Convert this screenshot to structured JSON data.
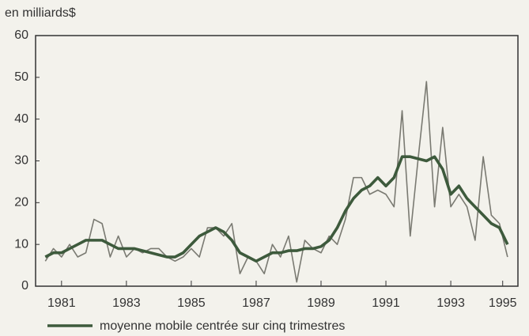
{
  "chart_data": {
    "type": "line",
    "y_axis_label": "en milliards$",
    "x": [
      1981,
      1981.25,
      1981.5,
      1981.75,
      1982,
      1982.25,
      1982.5,
      1982.75,
      1983,
      1983.25,
      1983.5,
      1983.75,
      1984,
      1984.25,
      1984.5,
      1984.75,
      1985,
      1985.25,
      1985.5,
      1985.75,
      1986,
      1986.25,
      1986.5,
      1986.75,
      1987,
      1987.25,
      1987.5,
      1987.75,
      1988,
      1988.25,
      1988.5,
      1988.75,
      1989,
      1989.25,
      1989.5,
      1989.75,
      1990,
      1990.25,
      1990.5,
      1990.75,
      1991,
      1991.25,
      1991.5,
      1991.75,
      1992,
      1992.25,
      1992.5,
      1992.75,
      1993,
      1993.25,
      1993.5,
      1993.75,
      1994,
      1994.25,
      1994.5,
      1994.75,
      1995,
      1995.25
    ],
    "series": [
      {
        "color": "#7a7a72",
        "width": 1.6,
        "values": [
          6,
          9,
          7,
          10,
          7,
          8,
          16,
          15,
          7,
          12,
          7,
          9,
          8,
          9,
          9,
          7,
          6,
          7,
          9,
          7,
          14,
          14,
          12,
          15,
          3,
          7,
          6,
          3,
          10,
          7,
          12,
          1,
          11,
          9,
          8,
          12,
          10,
          16,
          26,
          26,
          22,
          23,
          22,
          19,
          42,
          12,
          31,
          49,
          19,
          38,
          19,
          22,
          19,
          11,
          31,
          17,
          15,
          7
        ]
      },
      {
        "name": "moyenne mobile centrée sur cinq trimestres",
        "color": "#3d5a3c",
        "width": 3.6,
        "values": [
          7,
          8,
          8,
          9,
          10,
          11,
          11,
          11,
          10,
          9,
          9,
          9,
          8.5,
          8,
          7.5,
          7,
          7,
          8,
          10,
          12,
          13,
          14,
          13,
          11,
          8,
          7,
          6,
          7,
          8,
          8,
          8.5,
          8.5,
          9,
          9,
          9.5,
          11,
          14,
          18,
          21,
          23,
          24,
          26,
          24,
          26,
          31,
          31,
          30.5,
          30,
          31,
          28,
          22,
          24,
          21,
          19,
          17,
          15,
          14,
          10
        ]
      }
    ],
    "xlim": [
      1980.7,
      1995.57
    ],
    "xticks": [
      {
        "value": 1981.5,
        "label": "1981"
      },
      {
        "value": 1983.5,
        "label": "1983"
      },
      {
        "value": 1985.5,
        "label": "1985"
      },
      {
        "value": 1987.5,
        "label": "1987"
      },
      {
        "value": 1989.5,
        "label": "1989"
      },
      {
        "value": 1991.5,
        "label": "1991"
      },
      {
        "value": 1993.5,
        "label": "1993"
      },
      {
        "value": 1995.1,
        "label": "1995"
      }
    ],
    "ylim": [
      0,
      60
    ],
    "yticks": [
      0,
      10,
      20,
      30,
      40,
      50,
      60
    ]
  }
}
